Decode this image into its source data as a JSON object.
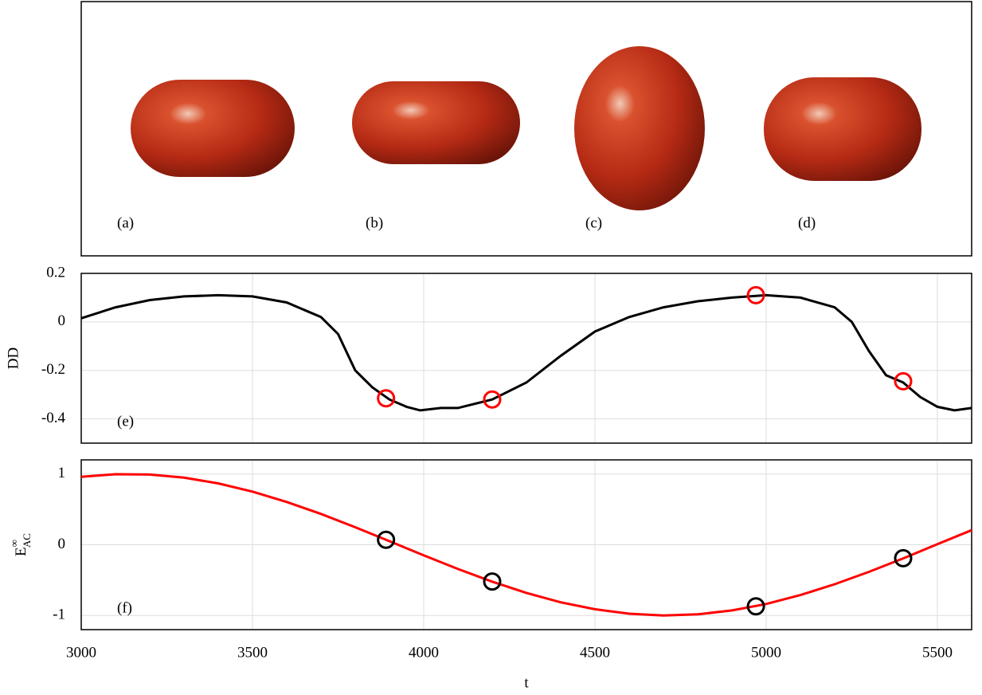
{
  "panel_labels": [
    "(a)",
    "(b)",
    "(c)",
    "(d)"
  ],
  "chart_data": [
    {
      "type": "line",
      "ylabel": "DD",
      "annotation": "(e)",
      "xlim": [
        3000,
        5600
      ],
      "xticks": [
        3000,
        3500,
        4000,
        4500,
        5000,
        5500
      ],
      "show_xtick_labels": false,
      "ylim": [
        -0.5,
        0.2
      ],
      "yticks": [
        -0.4,
        -0.2,
        0,
        0.2
      ],
      "grid": true,
      "line": {
        "color": "#000000",
        "x": [
          3000,
          3100,
          3200,
          3300,
          3400,
          3500,
          3600,
          3700,
          3750,
          3800,
          3850,
          3900,
          3950,
          3990,
          4050,
          4100,
          4200,
          4300,
          4400,
          4500,
          4600,
          4700,
          4800,
          4900,
          5000,
          5100,
          5200,
          5250,
          5300,
          5350,
          5400,
          5450,
          5500,
          5550,
          5600
        ],
        "values": [
          0.015,
          0.06,
          0.09,
          0.105,
          0.11,
          0.105,
          0.08,
          0.02,
          -0.05,
          -0.2,
          -0.27,
          -0.32,
          -0.35,
          -0.365,
          -0.355,
          -0.355,
          -0.32,
          -0.25,
          -0.14,
          -0.04,
          0.02,
          0.06,
          0.085,
          0.1,
          0.11,
          0.1,
          0.06,
          0.0,
          -0.12,
          -0.22,
          -0.25,
          -0.31,
          -0.35,
          -0.365,
          -0.355
        ]
      },
      "markers": {
        "color": "#ff0000",
        "x": [
          3890,
          4200,
          4970,
          5400
        ],
        "values": [
          -0.315,
          -0.32,
          0.11,
          -0.245
        ]
      }
    },
    {
      "type": "line",
      "ylabel": {
        "base": "E",
        "sup": "∞",
        "sub": "AC"
      },
      "annotation": "(f)",
      "xlabel": "t",
      "xlim": [
        3000,
        5600
      ],
      "xticks": [
        3000,
        3500,
        4000,
        4500,
        5000,
        5500
      ],
      "show_xtick_labels": true,
      "ylim": [
        -1.2,
        1.2
      ],
      "yticks": [
        -1,
        0,
        1
      ],
      "grid": true,
      "line": {
        "color": "#ff0000",
        "x": [
          3000,
          3100,
          3200,
          3300,
          3400,
          3500,
          3600,
          3700,
          3800,
          3900,
          4000,
          4100,
          4200,
          4300,
          4400,
          4500,
          4600,
          4700,
          4800,
          4900,
          5000,
          5100,
          5200,
          5300,
          5400,
          5500,
          5600
        ],
        "values": [
          0.961,
          0.997,
          0.993,
          0.949,
          0.868,
          0.752,
          0.605,
          0.436,
          0.248,
          0.051,
          -0.149,
          -0.342,
          -0.522,
          -0.681,
          -0.813,
          -0.912,
          -0.975,
          -1.0,
          -0.984,
          -0.929,
          -0.837,
          -0.711,
          -0.558,
          -0.383,
          -0.193,
          0.008,
          0.206
        ]
      },
      "markers": {
        "color": "#000000",
        "x": [
          3890,
          4200,
          4970,
          5400
        ],
        "values": [
          0.07,
          -0.52,
          -0.87,
          -0.19
        ]
      }
    }
  ]
}
